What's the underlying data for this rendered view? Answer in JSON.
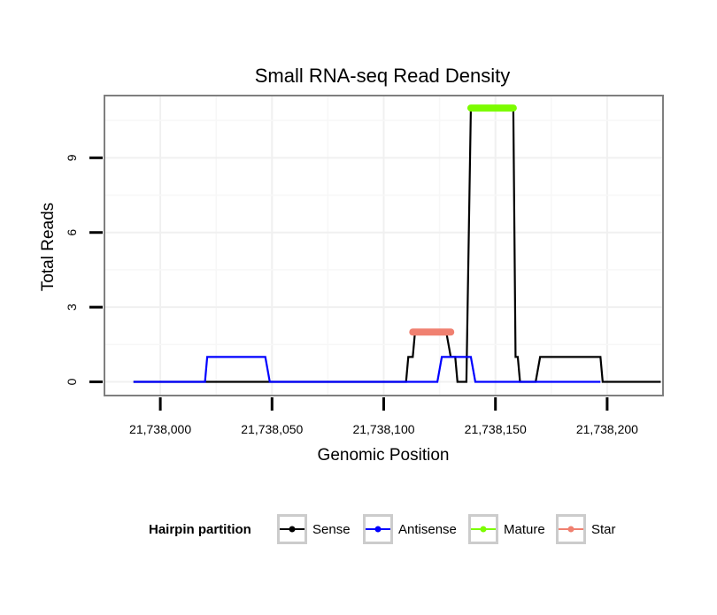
{
  "chart_data": {
    "type": "line",
    "title": "Small RNA-seq Read Density",
    "xlabel": "Genomic Position",
    "ylabel": "Total Reads",
    "xlim": [
      21737975,
      21738225
    ],
    "ylim": [
      -0.55,
      11.5
    ],
    "x_ticks": [
      21738000,
      21738050,
      21738100,
      21738150,
      21738200
    ],
    "x_tick_labels": [
      "21,738,000",
      "21,738,050",
      "21,738,100",
      "21,738,150",
      "21,738,200"
    ],
    "y_ticks": [
      0,
      3,
      6,
      9
    ],
    "y_tick_labels": [
      "0",
      "3",
      "6",
      "9"
    ],
    "grid": true,
    "legend": {
      "title": "Hairpin partition",
      "position": "bottom",
      "entries": [
        {
          "name": "Sense",
          "color": "#000000"
        },
        {
          "name": "Antisense",
          "color": "#0000ff"
        },
        {
          "name": "Mature",
          "color": "#7cfc00"
        },
        {
          "name": "Star",
          "color": "#f08070"
        }
      ]
    },
    "series": [
      {
        "name": "Sense",
        "color": "#000000",
        "points": [
          [
            21737988,
            0
          ],
          [
            21738110,
            0
          ],
          [
            21738111,
            1
          ],
          [
            21738113,
            1
          ],
          [
            21738114,
            2
          ],
          [
            21738128,
            2
          ],
          [
            21738130,
            1
          ],
          [
            21738132,
            1
          ],
          [
            21738133,
            0
          ],
          [
            21738137,
            0
          ],
          [
            21738139,
            11
          ],
          [
            21738158,
            11
          ],
          [
            21738159,
            1
          ],
          [
            21738160,
            1
          ],
          [
            21738161,
            0
          ],
          [
            21738168,
            0
          ],
          [
            21738170,
            1
          ],
          [
            21738197,
            1
          ],
          [
            21738198,
            0
          ],
          [
            21738224,
            0
          ]
        ]
      },
      {
        "name": "Antisense",
        "color": "#0000ff",
        "points": [
          [
            21737988,
            0
          ],
          [
            21738020,
            0
          ],
          [
            21738021,
            1
          ],
          [
            21738047,
            1
          ],
          [
            21738049,
            0
          ],
          [
            21738124,
            0
          ],
          [
            21738126,
            1
          ],
          [
            21738139,
            1
          ],
          [
            21738141,
            0
          ],
          [
            21738197,
            0
          ]
        ]
      },
      {
        "name": "Mature",
        "color": "#7cfc00",
        "points": [
          [
            21738139,
            11
          ],
          [
            21738158,
            11
          ]
        ]
      },
      {
        "name": "Star",
        "color": "#f08070",
        "points": [
          [
            21738113,
            2
          ],
          [
            21738130,
            2
          ]
        ]
      }
    ]
  }
}
